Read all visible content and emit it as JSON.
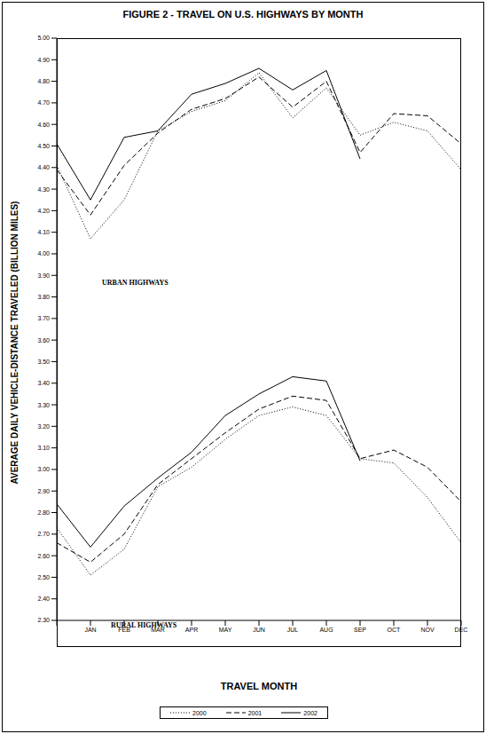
{
  "chart_data": {
    "type": "line",
    "title": "FIGURE 2 - TRAVEL ON U.S. HIGHWAYS BY MONTH",
    "x_label": "TRAVEL MONTH",
    "y_label": "AVERAGE DAILY VEHICLE-DISTANCE TRAVELED (BILLION MILES)",
    "categories": [
      null,
      "JAN",
      "FEB",
      "MAR",
      "APR",
      "MAY",
      "JUN",
      "JUL",
      "AUG",
      "SEP",
      "OCT",
      "NOV",
      "DEC"
    ],
    "ylim": [
      2.3,
      5.0
    ],
    "yticks": [
      {
        "value": 2.3,
        "label": "2.30"
      },
      {
        "value": 2.4,
        "label": "2.40"
      },
      {
        "value": 2.5,
        "label": "2.50"
      },
      {
        "value": 2.6,
        "label": "2.60"
      },
      {
        "value": 2.7,
        "label": "2.70"
      },
      {
        "value": 2.8,
        "label": "2.80"
      },
      {
        "value": 2.9,
        "label": "2.90"
      },
      {
        "value": 3.0,
        "label": "3.00"
      },
      {
        "value": 3.1,
        "label": "3.10"
      },
      {
        "value": 3.2,
        "label": "3.20"
      },
      {
        "value": 3.3,
        "label": "3.30"
      },
      {
        "value": 3.4,
        "label": "3.40"
      },
      {
        "value": 3.5,
        "label": "3.50"
      },
      {
        "value": 3.6,
        "label": "3.60"
      },
      {
        "value": 3.7,
        "label": "3.70"
      },
      {
        "value": 3.8,
        "label": "3.80"
      },
      {
        "value": 3.9,
        "label": "3.90"
      },
      {
        "value": 4.0,
        "label": "4.00"
      },
      {
        "value": 4.1,
        "label": "4.10"
      },
      {
        "value": 4.2,
        "label": "4.20"
      },
      {
        "value": 4.3,
        "label": "4.30"
      },
      {
        "value": 4.4,
        "label": "4.40"
      },
      {
        "value": 4.5,
        "label": "4.50"
      },
      {
        "value": 4.6,
        "label": "4.60"
      },
      {
        "value": 4.7,
        "label": "4.70"
      },
      {
        "value": 4.8,
        "label": "4.80"
      },
      {
        "value": 4.9,
        "label": "4.90"
      },
      {
        "value": 5.0,
        "label": "5.00"
      }
    ],
    "grid": false,
    "legend": "bottom",
    "groups": [
      {
        "label": "URBAN HIGHWAYS",
        "series": [
          {
            "name": "2000",
            "color": "#000000",
            "line_style": "dotted",
            "values": [
              4.41,
              4.07,
              4.25,
              4.57,
              4.66,
              4.71,
              4.84,
              4.63,
              4.77,
              4.55,
              4.61,
              4.57,
              4.39
            ]
          },
          {
            "name": "2001",
            "color": "#000000",
            "line_style": "dashed",
            "values": [
              4.39,
              4.18,
              4.41,
              4.56,
              4.67,
              4.72,
              4.82,
              4.68,
              4.8,
              4.47,
              4.65,
              4.64,
              4.51
            ]
          },
          {
            "name": "2002",
            "color": "#000000",
            "line_style": "solid",
            "values": [
              4.51,
              4.25,
              4.54,
              4.57,
              4.74,
              4.79,
              4.86,
              4.76,
              4.85,
              4.44,
              null,
              null,
              null
            ]
          }
        ]
      },
      {
        "label": "RURAL HIGHWAYS",
        "series": [
          {
            "name": "2000",
            "color": "#000000",
            "line_style": "dotted",
            "values": [
              2.73,
              2.51,
              2.63,
              2.92,
              3.01,
              3.14,
              3.25,
              3.29,
              3.25,
              3.05,
              3.03,
              2.87,
              2.66
            ]
          },
          {
            "name": "2001",
            "color": "#000000",
            "line_style": "dashed",
            "values": [
              2.66,
              2.57,
              2.7,
              2.93,
              3.05,
              3.17,
              3.28,
              3.34,
              3.32,
              3.05,
              3.09,
              3.01,
              2.85
            ]
          },
          {
            "name": "2002",
            "color": "#000000",
            "line_style": "solid",
            "values": [
              2.84,
              2.64,
              2.83,
              2.96,
              3.08,
              3.25,
              3.35,
              3.43,
              3.41,
              3.04,
              null,
              null,
              null
            ]
          }
        ]
      }
    ]
  }
}
